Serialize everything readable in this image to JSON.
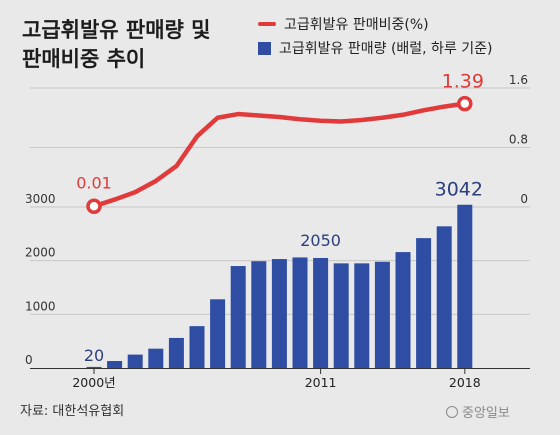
{
  "title_line1": "고급휘발유 판매량 및",
  "title_line2": "판매비중 추이",
  "legend": {
    "line_label": "고급휘발유 판매비중(%)",
    "bar_label": "고급휘발유 판매량 (배럴, 하루 기준)"
  },
  "source": "자료: 대한석유협회",
  "logo_text": "중앙일보",
  "colors": {
    "bar": "#2f4ea3",
    "line": "#e03a3a",
    "background": "#e9e9e9"
  },
  "chart_data": {
    "type": "bar",
    "x": [
      2000,
      2001,
      2002,
      2003,
      2004,
      2005,
      2006,
      2007,
      2008,
      2009,
      2010,
      2011,
      2012,
      2013,
      2014,
      2015,
      2016,
      2017,
      2018
    ],
    "x_tick_labels": [
      "2000년",
      "2011",
      "2018"
    ],
    "series": [
      {
        "type": "bar",
        "values": [
          20,
          130,
          250,
          360,
          560,
          780,
          1280,
          1900,
          1990,
          2030,
          2060,
          2050,
          1950,
          1950,
          1980,
          2160,
          2420,
          2640,
          3042
        ]
      },
      {
        "type": "line",
        "values": [
          0.01,
          0.1,
          0.2,
          0.35,
          0.55,
          0.95,
          1.2,
          1.25,
          1.23,
          1.21,
          1.18,
          1.16,
          1.15,
          1.17,
          1.2,
          1.24,
          1.3,
          1.35,
          1.39
        ]
      }
    ],
    "data_labels": {
      "bar": [
        "20",
        "2050",
        "3042"
      ],
      "line": [
        "0.01",
        "1.39"
      ]
    },
    "y_left": {
      "ticks": [
        "0",
        "1000",
        "2000",
        "3000"
      ],
      "ylim": [
        0,
        3200
      ]
    },
    "y_right": {
      "ticks": [
        "0",
        "0.8",
        "1.6"
      ],
      "ylim": [
        0,
        1.6
      ]
    },
    "grid": true
  }
}
